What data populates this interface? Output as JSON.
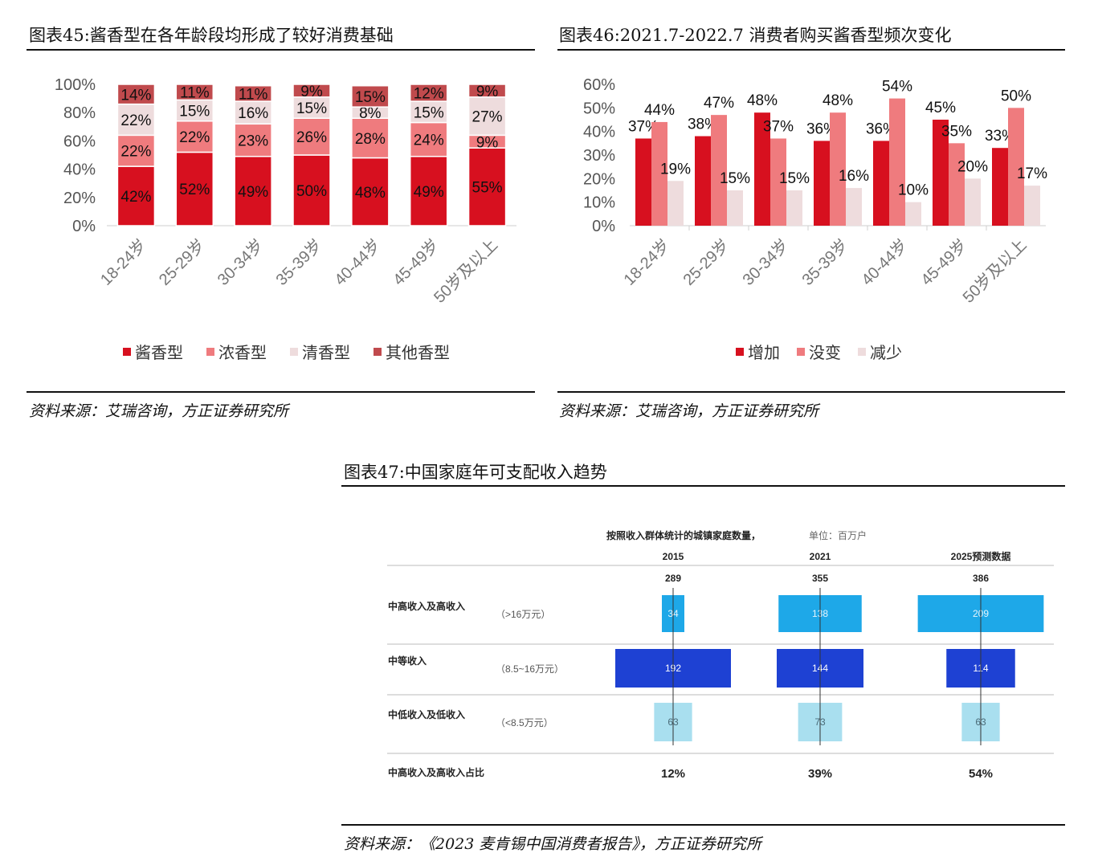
{
  "chart45": {
    "title": "图表45:酱香型在各年龄段均形成了较好消费基础",
    "source": "资料来源：艾瑞咨询，方正证券研究所"
  },
  "chart46": {
    "title": "图表46:2021.7-2022.7 消费者购买酱香型频次变化",
    "source": "资料来源：艾瑞咨询，方正证券研究所"
  },
  "chart47": {
    "title": "图表47:中国家庭年可支配收入趋势",
    "source": "资料来源：《2023 麦肯锡中国消费者报告》，方正证券研究所"
  },
  "chart_data": [
    {
      "type": "bar",
      "stacked": true,
      "title": "图表45:酱香型在各年龄段均形成了较好消费基础",
      "categories": [
        "18-24岁",
        "25-29岁",
        "30-34岁",
        "35-39岁",
        "40-44岁",
        "45-49岁",
        "50岁及以上"
      ],
      "ylim": [
        0,
        100
      ],
      "yticks": [
        "0%",
        "20%",
        "40%",
        "60%",
        "80%",
        "100%"
      ],
      "legend_position": "bottom",
      "series": [
        {
          "name": "酱香型",
          "color": "#d7101f",
          "values": [
            42,
            52,
            49,
            50,
            48,
            49,
            55
          ]
        },
        {
          "name": "浓香型",
          "color": "#ef7b7e",
          "values": [
            22,
            22,
            23,
            26,
            28,
            24,
            9
          ]
        },
        {
          "name": "清香型",
          "color": "#eedcdd",
          "values": [
            22,
            15,
            16,
            15,
            8,
            15,
            27
          ]
        },
        {
          "name": "其他香型",
          "color": "#c04a4d",
          "values": [
            14,
            11,
            11,
            9,
            15,
            12,
            9
          ]
        }
      ]
    },
    {
      "type": "bar",
      "title": "图表46:2021.7-2022.7 消费者购买酱香型频次变化",
      "categories": [
        "18-24岁",
        "25-29岁",
        "30-34岁",
        "35-39岁",
        "40-44岁",
        "45-49岁",
        "50岁及以上"
      ],
      "ylim": [
        0,
        60
      ],
      "yticks": [
        "0%",
        "10%",
        "20%",
        "30%",
        "40%",
        "50%",
        "60%"
      ],
      "legend_position": "bottom",
      "series": [
        {
          "name": "增加",
          "color": "#d7101f",
          "values": [
            37,
            38,
            48,
            36,
            36,
            45,
            33
          ]
        },
        {
          "name": "没变",
          "color": "#ef7b7e",
          "values": [
            44,
            47,
            37,
            48,
            54,
            35,
            50
          ]
        },
        {
          "name": "减少",
          "color": "#eedcdd",
          "values": [
            19,
            15,
            15,
            16,
            10,
            20,
            17
          ]
        }
      ]
    },
    {
      "type": "bar",
      "title": "图表47:中国家庭年可支配收入趋势",
      "subtitle": "按照收入群体统计的城镇家庭数量，",
      "unit": "单位：百万户",
      "columns": [
        "2015",
        "2021",
        "2025预测数据"
      ],
      "totals": [
        289,
        355,
        386
      ],
      "rows": [
        {
          "name": "中高收入及高收入",
          "range": "（>16万元）",
          "color": "#1ea8e8",
          "values": [
            34,
            138,
            209
          ]
        },
        {
          "name": "中等收入",
          "range": "（8.5~16万元）",
          "color": "#1e41d3",
          "values": [
            192,
            144,
            114
          ]
        },
        {
          "name": "中低收入及低收入",
          "range": "（<8.5万元）",
          "color": "#a9dfef",
          "values": [
            63,
            73,
            63
          ]
        }
      ],
      "share_label": "中高收入及高收入占比",
      "share_values": [
        "12%",
        "39%",
        "54%"
      ]
    }
  ]
}
